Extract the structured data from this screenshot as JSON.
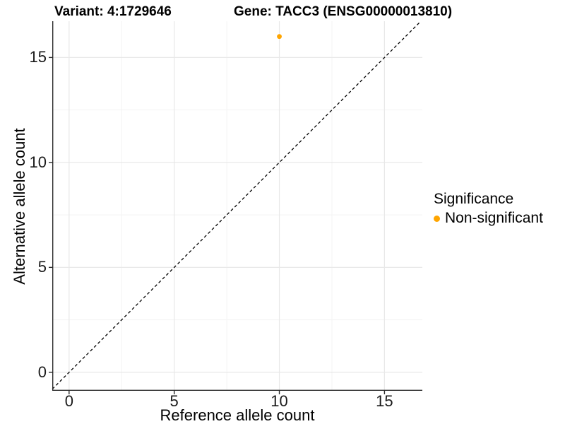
{
  "titles": {
    "left": "Variant: 4:1729646",
    "right": "Gene: TACC3 (ENSG00000013810)"
  },
  "legend": {
    "title": "Significance",
    "items": [
      {
        "label": "Non-significant",
        "color": "#FFA500"
      }
    ]
  },
  "chart_data": {
    "type": "scatter",
    "title_left": "Variant: 4:1729646",
    "title_right": "Gene: TACC3 (ENSG00000013810)",
    "xlabel": "Reference allele count",
    "ylabel": "Alternative allele count",
    "xlim": [
      -0.8,
      16.8
    ],
    "ylim": [
      -0.88,
      16.73
    ],
    "x_ticks": [
      0,
      5,
      10,
      15
    ],
    "y_ticks": [
      0,
      5,
      10,
      15
    ],
    "x_minor_ticks": [
      2.5,
      7.5,
      12.5
    ],
    "y_minor_ticks": [
      2.5,
      7.5,
      12.5
    ],
    "grid": true,
    "legend_position": "right",
    "points": [
      {
        "x": 10,
        "y": 16,
        "series": "Non-significant",
        "color": "#FFA500"
      }
    ],
    "reference_line": {
      "kind": "abline",
      "slope": 1,
      "intercept": 0,
      "style": "dashed",
      "color": "#000000"
    },
    "style": {
      "point_color": "#FFA500",
      "grid_major_color": "#E8E8E8",
      "grid_minor_color": "#F3F3F3",
      "axis_line_color": "#2B2B2B",
      "tick_label_color": "#1A1A1A"
    }
  }
}
